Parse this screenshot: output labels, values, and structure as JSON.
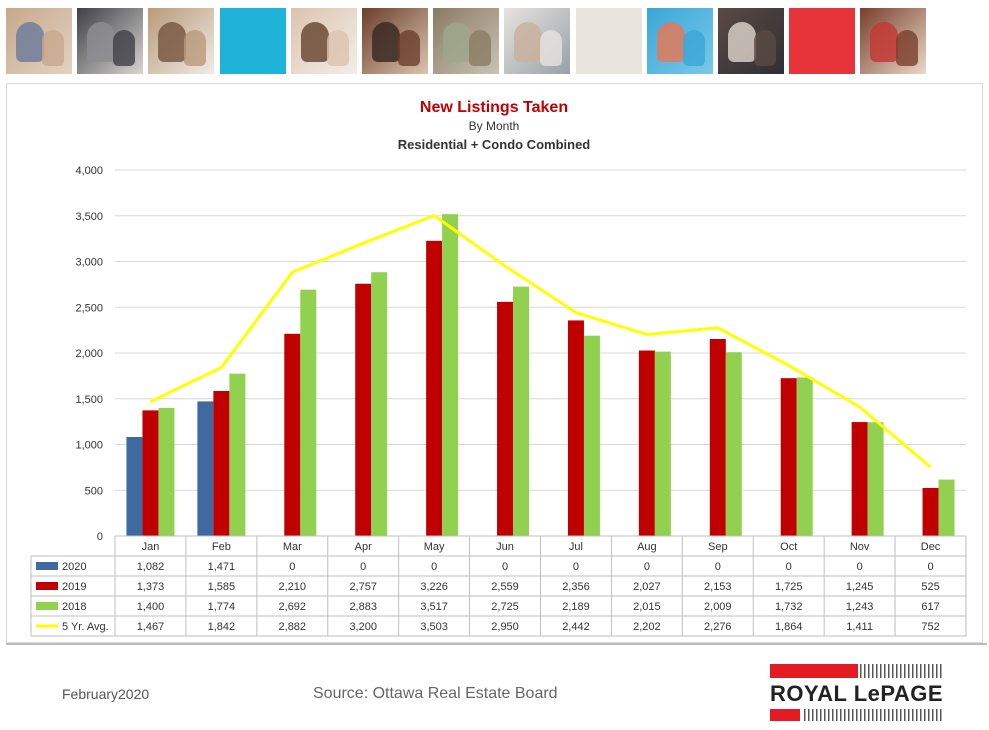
{
  "photo_strip": {
    "tiles": [
      {
        "name": "family-photo-tile",
        "colors": [
          "#c8a88c",
          "#6e7e9a",
          "#e2d3c2"
        ]
      },
      {
        "name": "phone-hands-tile",
        "colors": [
          "#3f3f46",
          "#8c8c92",
          "#d8d6d2"
        ]
      },
      {
        "name": "couple-house-tile",
        "colors": [
          "#b99a7a",
          "#7a5b44",
          "#f0ebe4"
        ]
      },
      {
        "name": "cyan-color-tile",
        "colors": [
          "#1fb3d9",
          "#1fb3d9",
          "#1fb3d9"
        ]
      },
      {
        "name": "woman-phone-tile",
        "colors": [
          "#dcc3ad",
          "#6b4a36",
          "#f3eee9"
        ]
      },
      {
        "name": "smiling-couple-tile",
        "colors": [
          "#6b3f2b",
          "#3b2a22",
          "#dbc4b0"
        ]
      },
      {
        "name": "house-exterior-tile",
        "colors": [
          "#8b7a63",
          "#9ea78c",
          "#c9c3b5"
        ]
      },
      {
        "name": "hand-laptop-tile",
        "colors": [
          "#e7e4e0",
          "#c9b19c",
          "#9aa0a8"
        ]
      },
      {
        "name": "beige-color-tile",
        "colors": [
          "#e9e4dc",
          "#e9e4dc",
          "#e9e4dc"
        ]
      },
      {
        "name": "pool-child-tile",
        "colors": [
          "#3aa6d8",
          "#e07a5a",
          "#7ac9e8"
        ]
      },
      {
        "name": "meeting-tablet-tile",
        "colors": [
          "#5a4a42",
          "#d7cdc5",
          "#2f2f35"
        ]
      },
      {
        "name": "red-color-tile",
        "colors": [
          "#e7343b",
          "#e7343b",
          "#e7343b"
        ]
      },
      {
        "name": "father-child-tile",
        "colors": [
          "#7a3e2c",
          "#c23b35",
          "#e9d8c8"
        ]
      }
    ]
  },
  "chart_data": {
    "type": "bar",
    "title": "New Listings Taken",
    "subtitle": "By Month",
    "subtitle2": "Residential + Condo Combined",
    "title_color": "#c00000",
    "categories": [
      "Jan",
      "Feb",
      "Mar",
      "Apr",
      "May",
      "Jun",
      "Jul",
      "Aug",
      "Sep",
      "Oct",
      "Nov",
      "Dec"
    ],
    "y_ticks": [
      "0",
      "500",
      "1,000",
      "1,500",
      "2,000",
      "2,500",
      "3,000",
      "3,500",
      "4,000"
    ],
    "ylim": [
      0,
      4000
    ],
    "grid": true,
    "series": [
      {
        "name": "2020",
        "kind": "bar",
        "color": "#3e6aa0",
        "values": [
          1082,
          1471,
          0,
          0,
          0,
          0,
          0,
          0,
          0,
          0,
          0,
          0
        ],
        "labels": [
          "1,082",
          "1,471",
          "0",
          "0",
          "0",
          "0",
          "0",
          "0",
          "0",
          "0",
          "0",
          "0"
        ]
      },
      {
        "name": "2019",
        "kind": "bar",
        "color": "#c00000",
        "values": [
          1373,
          1585,
          2210,
          2757,
          3226,
          2559,
          2356,
          2027,
          2153,
          1725,
          1245,
          525
        ],
        "labels": [
          "1,373",
          "1,585",
          "2,210",
          "2,757",
          "3,226",
          "2,559",
          "2,356",
          "2,027",
          "2,153",
          "1,725",
          "1,245",
          "525"
        ]
      },
      {
        "name": "2018",
        "kind": "bar",
        "color": "#92d050",
        "values": [
          1400,
          1774,
          2692,
          2883,
          3517,
          2725,
          2189,
          2015,
          2009,
          1732,
          1243,
          617
        ],
        "labels": [
          "1,400",
          "1,774",
          "2,692",
          "2,883",
          "3,517",
          "2,725",
          "2,189",
          "2,015",
          "2,009",
          "1,732",
          "1,243",
          "617"
        ]
      },
      {
        "name": "5 Yr. Avg.",
        "kind": "line",
        "color": "#ffff00",
        "values": [
          1467,
          1842,
          2882,
          3200,
          3503,
          2950,
          2442,
          2202,
          2276,
          1864,
          1411,
          752
        ],
        "labels": [
          "1,467",
          "1,842",
          "2,882",
          "3,200",
          "3,503",
          "2,950",
          "2,442",
          "2,202",
          "2,276",
          "1,864",
          "1,411",
          "752"
        ]
      }
    ]
  },
  "footer": {
    "date": "February2020",
    "source": "Source: Ottawa Real Estate Board",
    "logo_text": "ROYAL LePAGE",
    "logo_red": "#e31b23"
  }
}
